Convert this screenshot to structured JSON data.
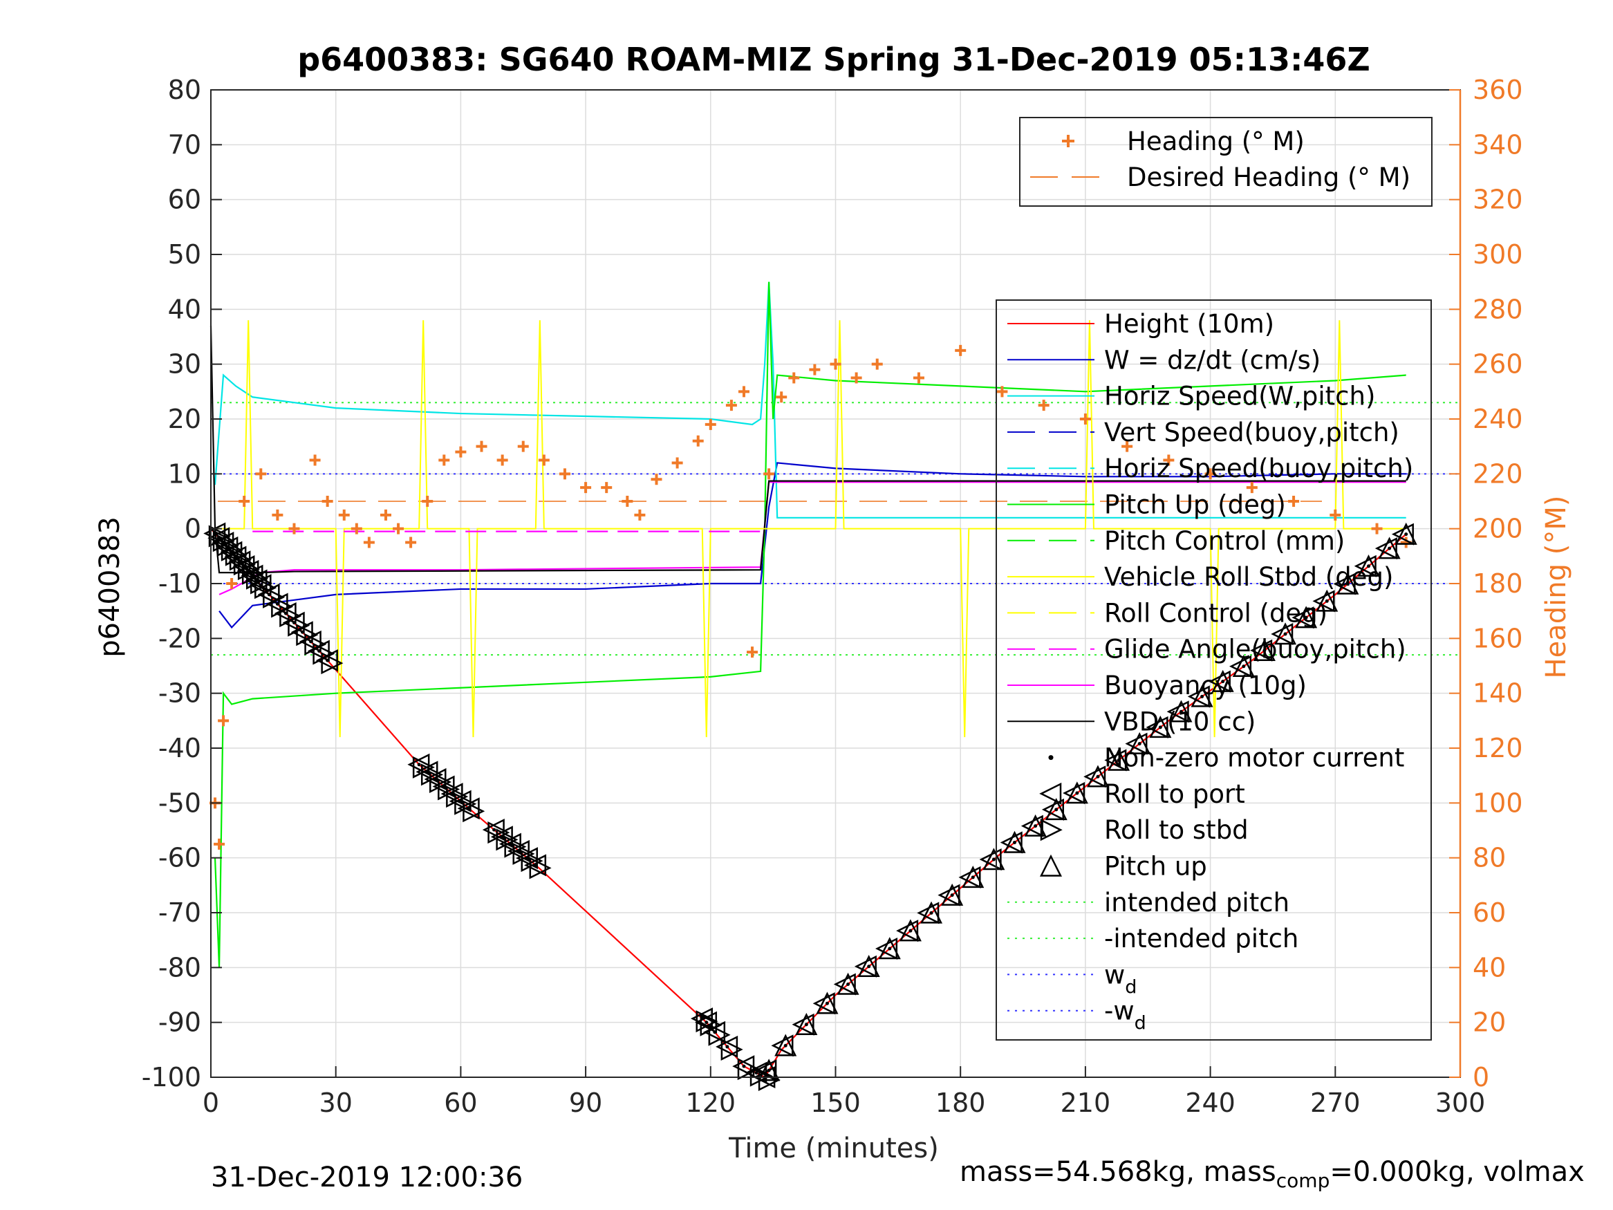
{
  "chart_data": {
    "type": "line",
    "title": "p6400383: SG640 ROAM-MIZ Spring 31-Dec-2019 05:13:46Z",
    "xlabel": "Time (minutes)",
    "ylabel": "p6400383",
    "y2label": "Heading (°M)",
    "xlim": [
      0,
      300
    ],
    "ylim": [
      -100,
      80
    ],
    "y2lim": [
      0,
      360
    ],
    "xticks": [
      0,
      30,
      60,
      90,
      120,
      150,
      180,
      210,
      240,
      270,
      300
    ],
    "yticks": [
      80,
      70,
      60,
      50,
      40,
      30,
      20,
      10,
      0,
      -10,
      -20,
      -30,
      -40,
      -50,
      -60,
      -70,
      -80,
      -90,
      -100
    ],
    "y2ticks": [
      360,
      340,
      320,
      300,
      280,
      260,
      240,
      220,
      200,
      180,
      160,
      140,
      120,
      100,
      80,
      60,
      40,
      20,
      0
    ],
    "grid": true,
    "right_axis_color": "#f07a28",
    "legend_top": {
      "placement": "top-right",
      "entries": [
        {
          "label": "Heading (° M)",
          "color": "#f07a28",
          "style": "plus"
        },
        {
          "label": "Desired Heading (° M)",
          "color": "#f07a28",
          "style": "dashed"
        }
      ]
    },
    "legend_main": {
      "placement": "right",
      "entries": [
        {
          "label": "Height (10m)",
          "color": "#ff0000",
          "style": "solid"
        },
        {
          "label": "W = dz/dt (cm/s)",
          "color": "#0000cc",
          "style": "solid"
        },
        {
          "label": "Horiz Speed(W,pitch)",
          "color": "#00e5e5",
          "style": "solid"
        },
        {
          "label": "Vert Speed(buoy,pitch)",
          "color": "#0000cc",
          "style": "dashed"
        },
        {
          "label": "Horiz Speed(buoy,pitch)",
          "color": "#00e5e5",
          "style": "dashed"
        },
        {
          "label": "Pitch Up (deg)",
          "color": "#00ee00",
          "style": "solid"
        },
        {
          "label": "Pitch Control (mm)",
          "color": "#00ee00",
          "style": "dashed"
        },
        {
          "label": "Vehicle Roll Stbd (deg)",
          "color": "#ffff00",
          "style": "solid"
        },
        {
          "label": "Roll Control (deg)",
          "color": "#ffff00",
          "style": "dashed"
        },
        {
          "label": "Glide Angle(buoy,pitch)",
          "color": "#ff00ff",
          "style": "dashed"
        },
        {
          "label": "Buoyancy (10g)",
          "color": "#ff00ff",
          "style": "solid"
        },
        {
          "label": "VBD (10 cc)",
          "color": "#000000",
          "style": "solid"
        },
        {
          "label": "Non-zero motor current",
          "color": "#000000",
          "style": "dot"
        },
        {
          "label": "Roll to port",
          "color": "#000000",
          "style": "tri-left"
        },
        {
          "label": "Roll to stbd",
          "color": "#000000",
          "style": "tri-right"
        },
        {
          "label": "Pitch up",
          "color": "#000000",
          "style": "tri-up"
        },
        {
          "label": "intended pitch",
          "color": "#33ee33",
          "style": "dotted"
        },
        {
          "label": "-intended pitch",
          "color": "#33ee33",
          "style": "dotted"
        },
        {
          "label": "w",
          "sub": "d",
          "color": "#3333ff",
          "style": "dotted"
        },
        {
          "label": "-w",
          "sub": "d",
          "color": "#3333ff",
          "style": "dotted"
        }
      ]
    },
    "series": [
      {
        "name": "Height (10m)",
        "color": "#ff0000",
        "axis": "left",
        "x": [
          0,
          28,
          50,
          62,
          79,
          119,
          128,
          133,
          137,
          150,
          170,
          190,
          210,
          230,
          250,
          270,
          287
        ],
        "y": [
          0,
          -24,
          -43,
          -51,
          -62,
          -90,
          -98,
          -100,
          -95,
          -85,
          -72,
          -59,
          -47,
          -35,
          -24,
          -12,
          -1
        ]
      },
      {
        "name": "W = dz/dt (cm/s)",
        "color": "#0000cc",
        "axis": "left",
        "x": [
          2,
          5,
          10,
          20,
          30,
          60,
          90,
          120,
          132,
          134,
          136,
          150,
          180,
          210,
          240,
          270,
          287
        ],
        "y": [
          -15,
          -18,
          -14,
          -13,
          -12,
          -11,
          -11,
          -10,
          -10,
          4,
          12,
          11,
          10,
          9.5,
          9.5,
          10,
          10
        ]
      },
      {
        "name": "Horiz Speed(W,pitch)",
        "color": "#00e5e5",
        "axis": "left",
        "x": [
          1,
          3,
          6,
          10,
          20,
          30,
          60,
          90,
          120,
          130,
          132,
          133,
          134,
          135,
          136,
          150,
          180,
          210,
          240,
          270,
          287
        ],
        "y": [
          8,
          28,
          26,
          24,
          23,
          22,
          21,
          20.5,
          20,
          19,
          20,
          30,
          45,
          30,
          2,
          2,
          2,
          2,
          2,
          2,
          2
        ]
      },
      {
        "name": "Pitch Up (deg)",
        "color": "#00ee00",
        "axis": "left",
        "x": [
          1,
          2,
          3,
          5,
          10,
          30,
          60,
          90,
          120,
          132,
          133,
          134,
          135,
          136,
          150,
          180,
          210,
          240,
          270,
          287
        ],
        "y": [
          -60,
          -80,
          -30,
          -32,
          -31,
          -30,
          -29,
          -28,
          -27,
          -26,
          0,
          45,
          20,
          28,
          27,
          26,
          25,
          26,
          27,
          28
        ]
      },
      {
        "name": "Buoyancy (10g)",
        "color": "#ff00ff",
        "axis": "left",
        "x": [
          2,
          5,
          12,
          20,
          60,
          132,
          134,
          287
        ],
        "y": [
          -12,
          -11,
          -8,
          -7.5,
          -7.5,
          -7,
          8.5,
          8.5
        ]
      },
      {
        "name": "VBD (10 cc)",
        "color": "#000000",
        "axis": "left",
        "x": [
          0,
          1,
          2,
          5,
          12,
          20,
          60,
          132,
          134,
          287
        ],
        "y": [
          37,
          0,
          -8,
          -8,
          -8,
          -7.8,
          -7.7,
          -7.5,
          8.7,
          8.7
        ]
      },
      {
        "name": "Vehicle Roll Stbd (deg)",
        "color": "#ffff00",
        "axis": "left",
        "x": [
          0,
          5,
          8,
          9,
          10,
          30,
          31,
          32,
          50,
          51,
          52,
          62,
          63,
          64,
          78,
          79,
          80,
          118,
          119,
          120,
          132,
          150,
          151,
          152,
          180,
          181,
          182,
          210,
          211,
          212,
          240,
          241,
          242,
          270,
          271,
          272,
          287
        ],
        "y": [
          0,
          0,
          0,
          38,
          0,
          0,
          -38,
          0,
          0,
          38,
          0,
          0,
          -38,
          0,
          0,
          38,
          0,
          0,
          -38,
          0,
          0,
          0,
          38,
          0,
          0,
          -38,
          0,
          0,
          38,
          0,
          0,
          -38,
          0,
          0,
          38,
          0,
          0
        ]
      },
      {
        "name": "Glide Angle(buoy,pitch)",
        "color": "#ff00ff",
        "axis": "left",
        "style": "dashed",
        "x": [
          10,
          132
        ],
        "y": [
          -0.5,
          -0.5
        ]
      }
    ],
    "heading": {
      "name": "Heading (° M)",
      "color": "#f07a28",
      "axis": "right",
      "x": [
        1,
        2,
        3,
        5,
        8,
        12,
        16,
        20,
        25,
        28,
        32,
        35,
        38,
        42,
        45,
        48,
        52,
        56,
        60,
        65,
        70,
        75,
        80,
        85,
        90,
        95,
        100,
        103,
        107,
        112,
        117,
        120,
        125,
        128,
        130,
        134,
        137,
        140,
        145,
        150,
        155,
        160,
        170,
        180,
        190,
        200,
        210,
        220,
        230,
        240,
        250,
        260,
        270,
        280,
        287
      ],
      "y": [
        100,
        85,
        130,
        180,
        210,
        220,
        205,
        200,
        225,
        210,
        205,
        200,
        195,
        205,
        200,
        195,
        210,
        225,
        228,
        230,
        225,
        230,
        225,
        220,
        215,
        215,
        210,
        205,
        218,
        224,
        232,
        238,
        245,
        250,
        155,
        220,
        248,
        255,
        258,
        260,
        255,
        260,
        255,
        265,
        250,
        245,
        240,
        230,
        225,
        220,
        215,
        210,
        205,
        200,
        195
      ]
    },
    "desired_heading": 210,
    "intended_pitch": 23,
    "w_d": 10,
    "markers": {
      "dive_x": [
        1,
        2,
        3,
        4,
        5,
        6,
        7,
        8,
        9,
        10,
        11,
        12,
        14,
        16,
        18,
        20,
        22,
        24,
        26,
        28,
        50,
        52,
        54,
        56,
        58,
        60,
        62,
        68,
        70,
        72,
        74,
        76,
        78,
        118,
        119,
        121,
        124,
        128,
        131,
        133
      ],
      "climb_x": [
        134,
        138,
        143,
        148,
        153,
        158,
        163,
        168,
        173,
        178,
        183,
        188,
        193,
        198,
        203,
        208,
        213,
        218,
        223,
        228,
        233,
        238,
        243,
        248,
        253,
        258,
        263,
        268,
        273,
        278,
        283,
        287
      ]
    }
  },
  "footer": {
    "timestamp": "31-Dec-2019 12:00:36",
    "mass_text": "mass=54.568kg, mass",
    "mass_sub": "comp",
    "mass_rest": "=0.000kg, volmax"
  }
}
